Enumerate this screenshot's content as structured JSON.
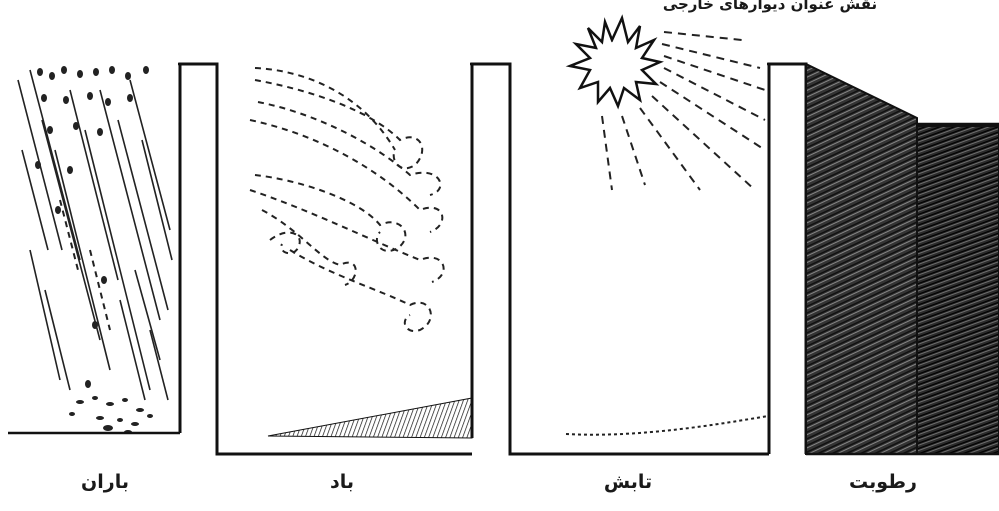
{
  "header": {
    "title": "نقش عنوان دیوارهای خارجی"
  },
  "panels": [
    {
      "id": "rain",
      "label": "باران"
    },
    {
      "id": "wind",
      "label": "باد"
    },
    {
      "id": "radiation",
      "label": "تابش"
    },
    {
      "id": "moisture",
      "label": "رطوبت"
    }
  ]
}
